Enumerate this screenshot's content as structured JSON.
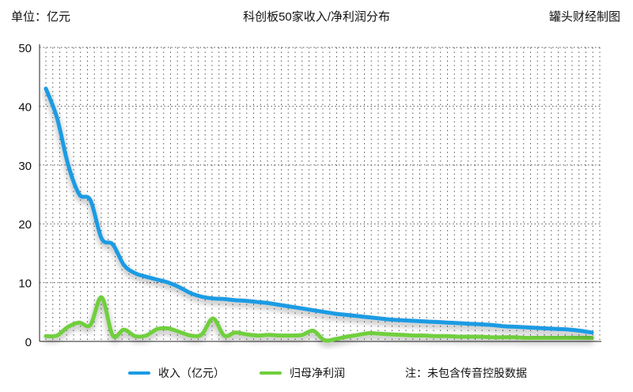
{
  "header": {
    "unit": "单位：亿元",
    "title": "科创板50家收入/净利润分布",
    "source": "罐头财经制图"
  },
  "note": "注：未包含传音控股数据",
  "colors": {
    "revenue": "#1a9be3",
    "net_income": "#6fcf3d",
    "grid": "#555555",
    "axis": "#222222"
  },
  "chart_data": {
    "type": "line",
    "x": [
      1,
      2,
      3,
      4,
      5,
      6,
      7,
      8,
      9,
      10,
      11,
      12,
      13,
      14,
      15,
      16,
      17,
      18,
      19,
      20,
      21,
      22,
      23,
      24,
      25,
      26,
      27,
      28,
      29,
      30,
      31,
      32,
      33,
      34,
      35,
      36,
      37,
      38,
      39,
      40,
      41,
      42,
      43,
      44,
      45,
      46,
      47,
      48,
      49,
      50
    ],
    "ylim": [
      0,
      50
    ],
    "yticks": [
      0,
      10,
      20,
      30,
      40,
      50
    ],
    "grid": true,
    "legend_position": "bottom",
    "series": [
      {
        "name": "收入（亿元）",
        "key": "revenue",
        "values": [
          43,
          38,
          30,
          25,
          24,
          17.5,
          16.5,
          13,
          11.6,
          11,
          10.5,
          10,
          9.2,
          8.2,
          7.6,
          7.3,
          7.2,
          7.0,
          6.9,
          6.7,
          6.5,
          6.2,
          5.9,
          5.6,
          5.3,
          5.0,
          4.7,
          4.5,
          4.3,
          4.1,
          3.9,
          3.7,
          3.6,
          3.5,
          3.4,
          3.3,
          3.2,
          3.1,
          3.0,
          2.9,
          2.8,
          2.6,
          2.5,
          2.4,
          2.3,
          2.2,
          2.1,
          2.0,
          1.8,
          1.5
        ]
      },
      {
        "name": "归母净利润",
        "key": "net_income",
        "values": [
          0.9,
          1.0,
          2.5,
          3.2,
          2.8,
          7.5,
          1.0,
          2.0,
          0.9,
          1.0,
          2.1,
          2.2,
          1.6,
          1.0,
          1.2,
          3.9,
          1.0,
          1.5,
          1.2,
          1.0,
          1.1,
          1.0,
          1.0,
          1.1,
          1.8,
          0.2,
          0.4,
          0.8,
          1.1,
          1.4,
          1.3,
          1.2,
          1.1,
          1.0,
          1.0,
          0.9,
          0.9,
          0.8,
          0.8,
          0.8,
          0.7,
          0.7,
          0.7,
          0.6,
          0.6,
          0.6,
          0.6,
          0.6,
          0.6,
          0.6
        ]
      }
    ]
  }
}
